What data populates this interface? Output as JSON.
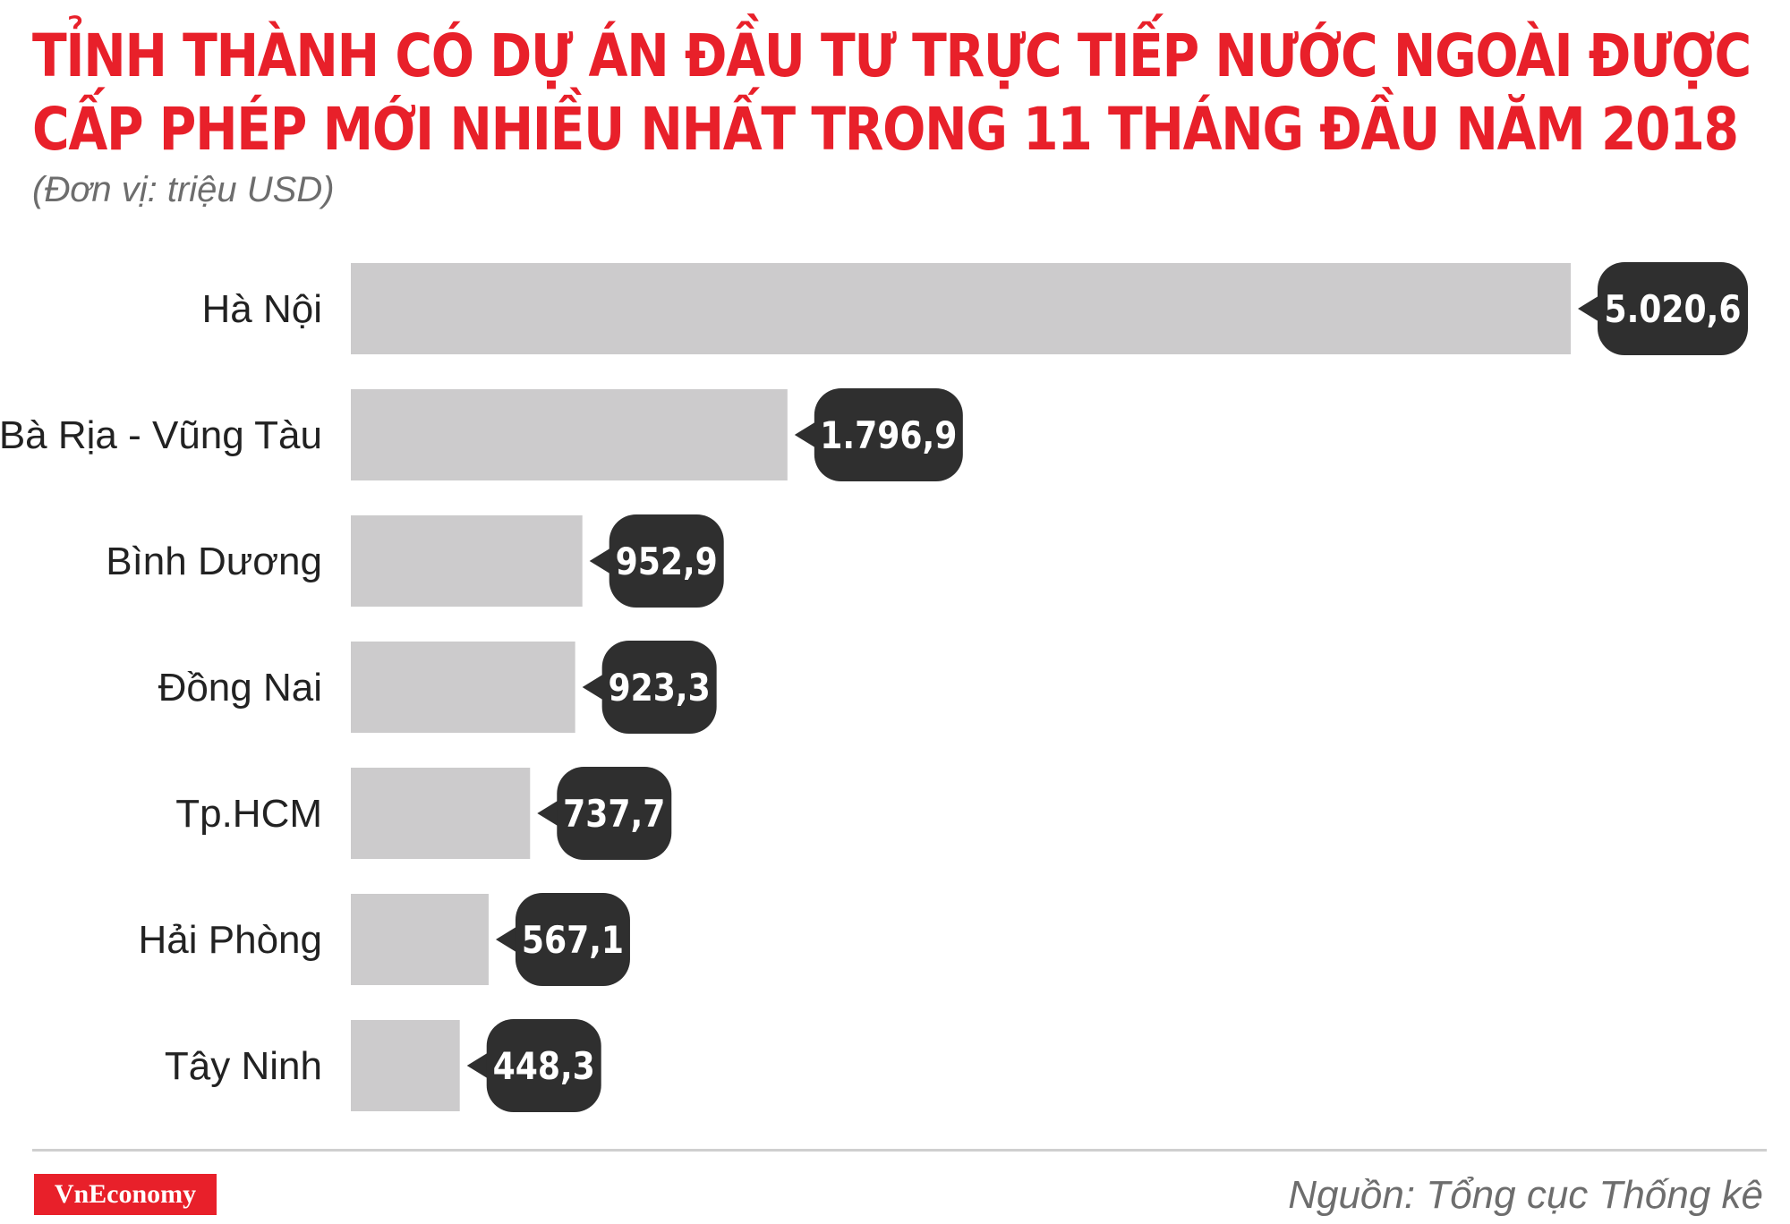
{
  "header": {
    "title_line1": "TỈNH THÀNH CÓ DỰ ÁN ĐẦU TƯ TRỰC TIẾP NƯỚC NGOÀI ĐƯỢC",
    "title_line2": "CẤP PHÉP MỚI NHIỀU NHẤT TRONG 11 THÁNG ĐẦU NĂM 2018",
    "unit": "(Đơn vị: triệu USD)"
  },
  "footer": {
    "brand": "VnEconomy",
    "source": "Nguồn: Tổng cục Thống kê"
  },
  "colors": {
    "title": "#e8202a",
    "bar": "#cccbcc",
    "value_bubble": "#2f2f2f",
    "brand_bg": "#e8202a"
  },
  "chart_data": {
    "type": "bar",
    "orientation": "horizontal",
    "title": "TỈNH THÀNH CÓ DỰ ÁN ĐẦU TƯ TRỰC TIẾP NƯỚC NGOÀI ĐƯỢC CẤP PHÉP MỚI NHIỀU NHẤT TRONG 11 THÁNG ĐẦU NĂM 2018",
    "subtitle": "(Đơn vị: triệu USD)",
    "categories": [
      "Hà Nội",
      "Bà Rịa - Vũng Tàu",
      "Bình Dương",
      "Đồng Nai",
      "Tp.HCM",
      "Hải Phòng",
      "Tây Ninh"
    ],
    "values": [
      5020.6,
      1796.9,
      952.9,
      923.3,
      737.7,
      567.1,
      448.3
    ],
    "value_labels": [
      "5.020,6",
      "1.796,9",
      "952,9",
      "923,3",
      "737,7",
      "567,1",
      "448,3"
    ],
    "xlim": [
      0,
      5020.6
    ],
    "grid": false,
    "legend": "none"
  }
}
